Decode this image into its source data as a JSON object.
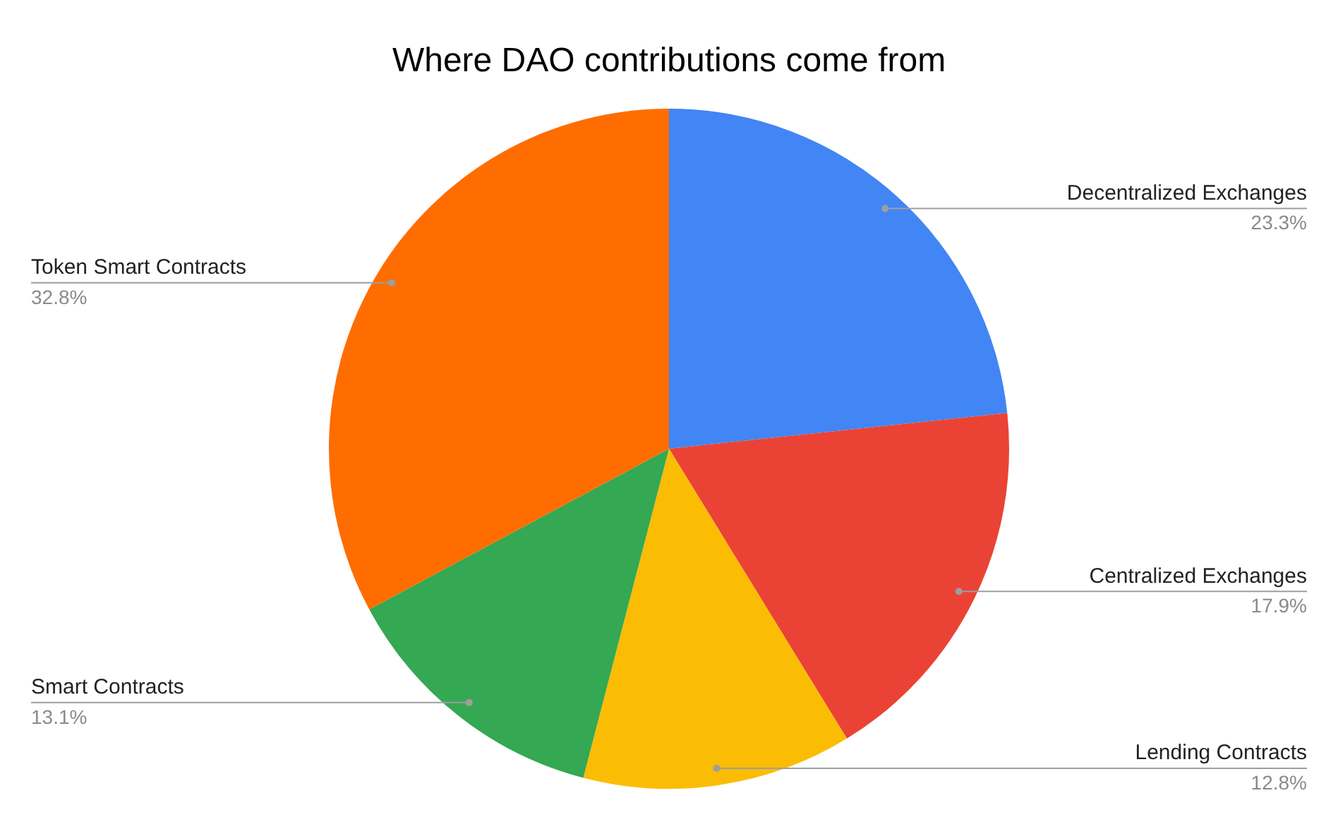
{
  "chart_data": {
    "type": "pie",
    "title": "Where DAO contributions come from",
    "categories": [
      "Decentralized Exchanges",
      "Centralized Exchanges",
      "Lending Contracts",
      "Smart Contracts",
      "Token Smart Contracts"
    ],
    "values": [
      23.3,
      17.9,
      12.8,
      13.1,
      32.8
    ],
    "colors": [
      "#4285f4",
      "#ea4335",
      "#fbbc04",
      "#34a853",
      "#ff6d01"
    ],
    "value_labels": [
      "23.3%",
      "17.9%",
      "12.8%",
      "13.1%",
      "32.8%"
    ],
    "legend": false
  }
}
